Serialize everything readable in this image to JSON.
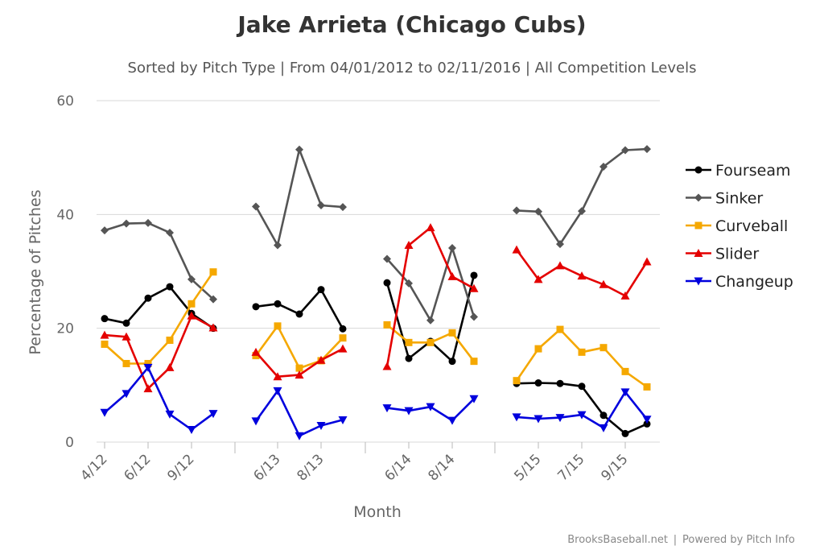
{
  "chart_data": {
    "type": "line",
    "title": "Jake Arrieta (Chicago Cubs)",
    "subtitle": "Sorted by Pitch Type | From 04/01/2012 to 02/11/2016 | All Competition Levels",
    "xlabel": "Month",
    "ylabel": "Percentage of Pitches",
    "ylim": [
      0,
      60
    ],
    "yticks": [
      0,
      20,
      40,
      60
    ],
    "grid": true,
    "legend_position": "right",
    "x_tick_labels": [
      "4/12",
      "6/12",
      "9/12",
      "6/13",
      "8/13",
      "6/14",
      "8/14",
      "5/15",
      "7/15",
      "9/15"
    ],
    "x_months": [
      "4/12",
      "5/12",
      "6/12",
      "7/12",
      "9/12",
      "10/12",
      "5/13",
      "6/13",
      "7/13",
      "8/13",
      "9/13",
      "5/14",
      "6/14",
      "7/14",
      "8/14",
      "9/14",
      "4/15",
      "5/15",
      "6/15",
      "7/15",
      "8/15",
      "9/15",
      "10/15"
    ],
    "series": [
      {
        "name": "Fourseam",
        "color": "#000000",
        "marker": "circle",
        "values": [
          21.7,
          20.9,
          25.3,
          27.3,
          22.6,
          20.0,
          23.8,
          24.3,
          22.5,
          26.8,
          19.9,
          28.0,
          14.7,
          17.7,
          14.2,
          29.3,
          10.3,
          10.4,
          10.3,
          9.8,
          4.7,
          1.5,
          3.2
        ]
      },
      {
        "name": "Sinker",
        "color": "#555555",
        "marker": "diamond",
        "values": [
          37.2,
          38.4,
          38.5,
          36.8,
          28.6,
          25.1,
          41.4,
          34.6,
          51.4,
          41.6,
          41.3,
          32.2,
          27.9,
          21.4,
          34.1,
          22.0,
          40.7,
          40.5,
          34.8,
          40.6,
          48.4,
          51.3,
          51.5
        ]
      },
      {
        "name": "Curveball",
        "color": "#f5a800",
        "marker": "square",
        "values": [
          17.2,
          13.8,
          13.8,
          17.9,
          24.3,
          29.9,
          15.2,
          20.4,
          13.0,
          14.3,
          18.3,
          20.6,
          17.5,
          17.5,
          19.2,
          14.2,
          10.8,
          16.4,
          19.8,
          15.8,
          16.6,
          12.4,
          9.7
        ]
      },
      {
        "name": "Slider",
        "color": "#e40000",
        "marker": "triangle",
        "values": [
          18.8,
          18.5,
          9.4,
          13.1,
          22.2,
          20.1,
          15.8,
          11.5,
          11.8,
          14.4,
          16.4,
          13.3,
          34.6,
          37.7,
          29.1,
          27.0,
          33.8,
          28.6,
          31.0,
          29.2,
          27.7,
          25.7,
          31.7
        ]
      },
      {
        "name": "Changeup",
        "color": "#0000dd",
        "marker": "triangle-down",
        "values": [
          5.2,
          8.5,
          13.1,
          4.9,
          2.2,
          5.0,
          3.7,
          9.0,
          1.1,
          2.9,
          3.9,
          6.0,
          5.5,
          6.2,
          3.8,
          7.6,
          4.4,
          4.1,
          4.3,
          4.8,
          2.5,
          8.8,
          4.0
        ]
      }
    ]
  },
  "credit": {
    "left": "BrooksBaseball.net",
    "separator": "|",
    "right": "Powered by Pitch Info"
  }
}
